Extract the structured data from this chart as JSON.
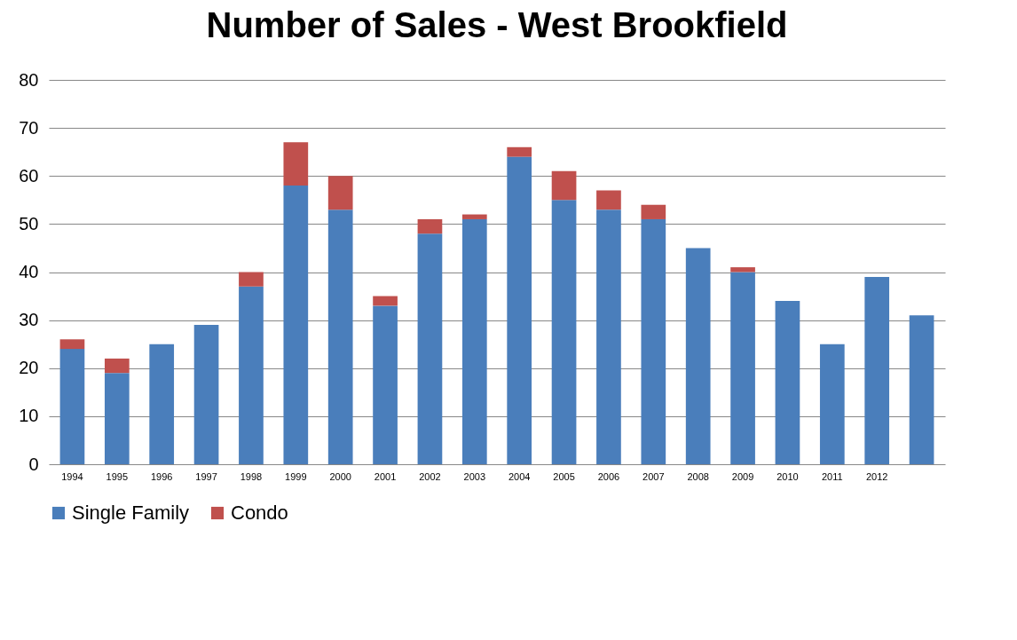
{
  "chart_data": {
    "type": "bar",
    "title": "Number of Sales - West Brookfield",
    "stacked": true,
    "categories": [
      "1994",
      "1995",
      "1996",
      "1997",
      "1998",
      "1999",
      "2000",
      "2001",
      "2002",
      "2003",
      "2004",
      "2005",
      "2006",
      "2007",
      "2008",
      "2009",
      "2010",
      "2011",
      "2012",
      null
    ],
    "series": [
      {
        "name": "Single Family",
        "color": "#4a7ebb",
        "values": [
          24,
          19,
          25,
          29,
          37,
          58,
          53,
          33,
          48,
          51,
          64,
          55,
          53,
          51,
          45,
          40,
          34,
          25,
          39,
          31
        ]
      },
      {
        "name": "Condo",
        "color": "#c0504d",
        "values": [
          2,
          3,
          null,
          null,
          3,
          9,
          7,
          2,
          3,
          1,
          2,
          6,
          4,
          3,
          null,
          1,
          null,
          null,
          null,
          null
        ]
      }
    ],
    "ylim": [
      0,
      80
    ],
    "yticks": [
      0,
      10,
      20,
      30,
      40,
      50,
      60,
      70,
      80
    ],
    "grid": "y",
    "legend": "bottom"
  }
}
